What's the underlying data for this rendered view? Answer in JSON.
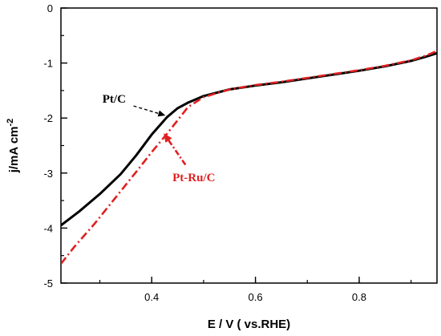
{
  "chart_data": {
    "type": "line",
    "xlabel": "E / V (  vs.RHE)",
    "ylabel": "j/mA cm",
    "ylabel_sup": "-2",
    "xlim": [
      0.225,
      0.95
    ],
    "ylim": [
      -5,
      0
    ],
    "x_ticks": [
      0.4,
      0.6,
      0.8
    ],
    "y_ticks": [
      0,
      -1,
      -2,
      -3,
      -4,
      -5
    ],
    "x_tick_labels": [
      "0.4",
      "0.6",
      "0.8"
    ],
    "y_tick_labels": [
      "0",
      "-1",
      "-2",
      "-3",
      "-4",
      "-5"
    ],
    "grid": false,
    "series": [
      {
        "name": "Pt/C",
        "color": "#000000",
        "style": "solid",
        "x": [
          0.225,
          0.26,
          0.3,
          0.34,
          0.37,
          0.4,
          0.43,
          0.45,
          0.47,
          0.5,
          0.55,
          0.6,
          0.65,
          0.7,
          0.75,
          0.8,
          0.85,
          0.9,
          0.93,
          0.95
        ],
        "y": [
          -3.95,
          -3.7,
          -3.38,
          -3.02,
          -2.68,
          -2.3,
          -1.98,
          -1.82,
          -1.72,
          -1.6,
          -1.48,
          -1.41,
          -1.35,
          -1.28,
          -1.21,
          -1.14,
          -1.06,
          -0.96,
          -0.88,
          -0.82
        ]
      },
      {
        "name": "Pt-Ru/C",
        "color": "#e02020",
        "style": "dashdot",
        "x": [
          0.225,
          0.25,
          0.29,
          0.33,
          0.37,
          0.4,
          0.43,
          0.45,
          0.47,
          0.5,
          0.55,
          0.6,
          0.65,
          0.7,
          0.75,
          0.8,
          0.85,
          0.9,
          0.93,
          0.95
        ],
        "y": [
          -4.65,
          -4.35,
          -3.92,
          -3.45,
          -2.98,
          -2.62,
          -2.28,
          -2.04,
          -1.8,
          -1.62,
          -1.48,
          -1.4,
          -1.34,
          -1.27,
          -1.2,
          -1.13,
          -1.05,
          -0.95,
          -0.86,
          -0.78
        ]
      }
    ],
    "annotations": [
      {
        "text": "Pt/C",
        "color": "#000000"
      },
      {
        "text": "Pt-Ru/C",
        "color": "#e02020"
      }
    ]
  }
}
